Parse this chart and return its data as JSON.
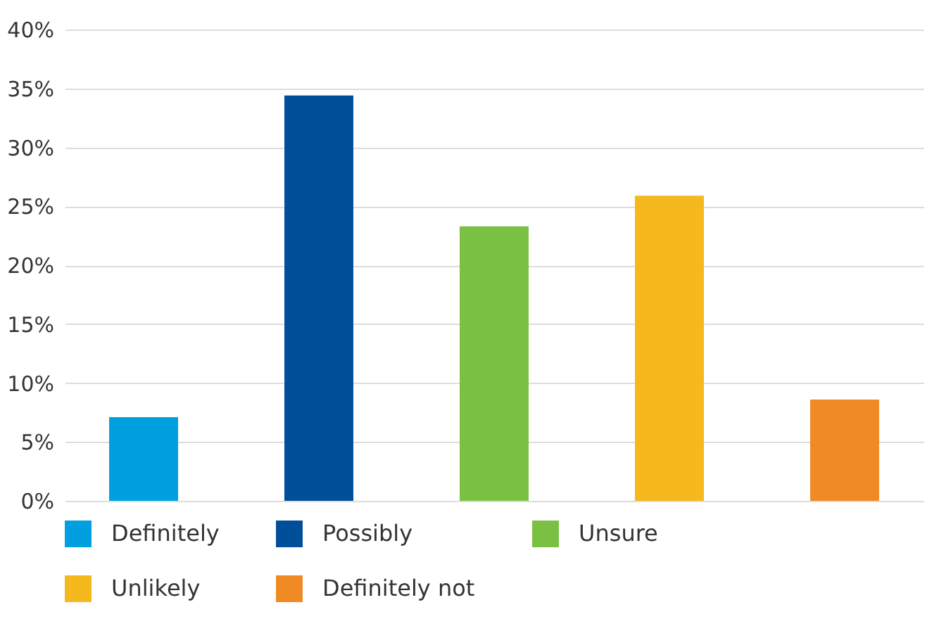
{
  "chart_data": {
    "type": "bar",
    "categories": [
      null,
      null,
      null,
      null,
      null
    ],
    "series": [
      {
        "name": "Definitely",
        "color": "#00a0e0",
        "values": [
          7.1,
          null,
          null,
          null,
          null
        ]
      },
      {
        "name": "Possibly",
        "color": "#004f98",
        "values": [
          null,
          34.4,
          null,
          null,
          null
        ]
      },
      {
        "name": "Unsure",
        "color": "#7ac143",
        "values": [
          null,
          null,
          23.3,
          null,
          null
        ]
      },
      {
        "name": "Unlikely",
        "color": "#f5b91d",
        "values": [
          null,
          null,
          null,
          25.9,
          null
        ]
      },
      {
        "name": "Definitely not",
        "color": "#f08a24",
        "values": [
          null,
          null,
          null,
          null,
          8.6
        ]
      }
    ],
    "ylim": [
      0,
      40
    ],
    "yticks": [
      {
        "value": 0,
        "label": "0%"
      },
      {
        "value": 5,
        "label": "5%"
      },
      {
        "value": 10,
        "label": "10%"
      },
      {
        "value": 15,
        "label": "15%"
      },
      {
        "value": 20,
        "label": "20%"
      },
      {
        "value": 25,
        "label": "25%"
      },
      {
        "value": 30,
        "label": "30%"
      },
      {
        "value": 35,
        "label": "35%"
      },
      {
        "value": 40,
        "label": "40%"
      }
    ],
    "grid": "y",
    "legend": "bottom",
    "tick_labels": "y"
  }
}
